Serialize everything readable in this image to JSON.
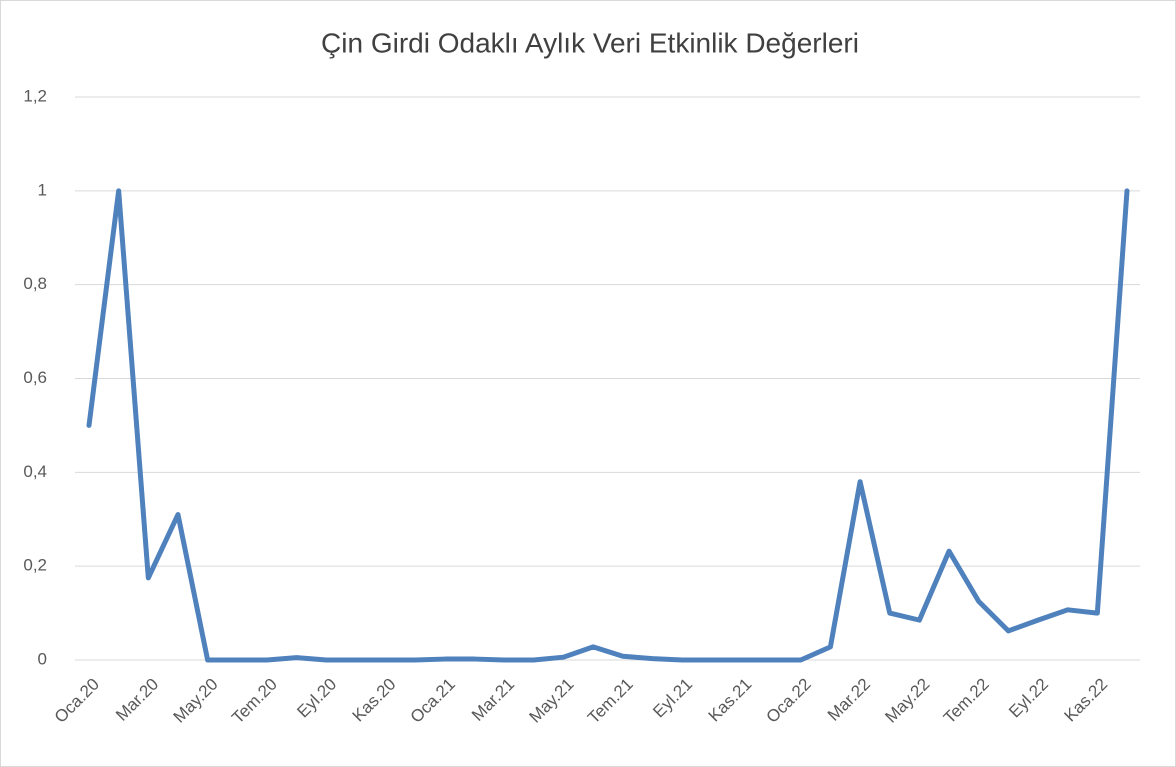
{
  "chart_data": {
    "type": "line",
    "title": "Çin Girdi Odaklı Aylık Veri Etkinlik Değerleri",
    "categories": [
      "Oca.20",
      null,
      "Mar.20",
      null,
      "May.20",
      null,
      "Tem.20",
      null,
      "Eyl.20",
      null,
      "Kas.20",
      null,
      "Oca.21",
      null,
      "Mar.21",
      null,
      "May.21",
      null,
      "Tem.21",
      null,
      "Eyl.21",
      null,
      "Kas.21",
      null,
      "Oca.22",
      null,
      "Mar.22",
      null,
      "May.22",
      null,
      "Tem.22",
      null,
      "Eyl.22",
      null,
      "Kas.22",
      null
    ],
    "series": [
      {
        "name": "Çin",
        "color": "#4f81bd",
        "values": [
          0.5,
          1.0,
          0.175,
          0.31,
          0,
          0,
          0,
          0.005,
          0,
          0,
          0,
          0,
          0.002,
          0.002,
          0,
          0,
          0.006,
          0.028,
          0.008,
          0.003,
          0,
          0,
          0,
          0,
          0,
          0.028,
          0.38,
          0.1,
          0.085,
          0.232,
          0.125,
          0.062,
          0.085,
          0.107,
          0.1,
          1.0
        ]
      }
    ],
    "ylim": [
      0,
      1.2
    ],
    "yticks": [
      0,
      {
        "value": 0.2,
        "label": "0,2"
      },
      {
        "value": 0.4,
        "label": "0,4"
      },
      {
        "value": 0.6,
        "label": "0,6"
      },
      {
        "value": 0.8,
        "label": "0,8"
      },
      1,
      {
        "value": 1.2,
        "label": "1,2"
      }
    ],
    "grid": true
  }
}
